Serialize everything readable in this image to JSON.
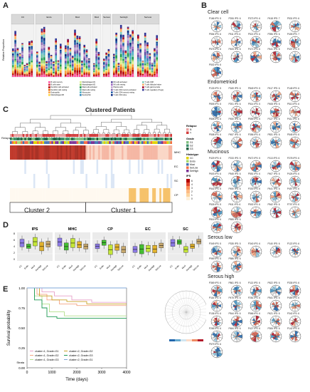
{
  "panels": {
    "A": {
      "label": "A",
      "facets": [
        "CC",
        "Endo",
        "Muci",
        "Muci",
        "Serous",
        "SerHigh",
        "SerLow"
      ],
      "ylabel": "Relative Proportion",
      "legend": [
        "B cells memory",
        "B cells naive",
        "Dendritic cells activated",
        "Dendritic cells resting",
        "Eosinophils",
        "Macrophages M0",
        "Macrophages M1",
        "Macrophages M2",
        "Mast cells activated",
        "Mast cells resting",
        "Monocytes",
        "Neutrophils",
        "NK cells activated",
        "NK cells resting",
        "Plasma cells",
        "T cells CD4 memory activated",
        "T cells CD4 memory resting",
        "T cells CD4 naive",
        "T cells CD8",
        "T cells follicular helper",
        "T cells gamma delta",
        "T cells regulatory (Tregs)"
      ]
    },
    "B": {
      "label": "B"
    },
    "C": {
      "label": "C",
      "title": "Clustered Patients",
      "rows": [
        "MHC",
        "EC",
        "SC",
        "CP"
      ],
      "clusters": [
        "Cluster 2",
        "Cluster 1"
      ],
      "legend_relapse_title": "Relapse",
      "relapse_items": [
        "N",
        "Y"
      ],
      "legend_grade_title": "Grade",
      "grade_items": [
        "G1",
        "G2",
        "G3"
      ],
      "legend_histotype_title": "Histotype",
      "histotype_items": [
        "CC",
        "Endo",
        "Muci",
        "SerLow",
        "SerHigh"
      ],
      "legend_ips_title": "IPS",
      "ips_ticks": [
        "6",
        "4",
        "3",
        "2",
        "1",
        "0"
      ],
      "row_labels_left": [
        "Relapse",
        "Grade",
        "Histotype"
      ]
    },
    "D": {
      "label": "D",
      "titles": [
        "IPS",
        "MHC",
        "CP",
        "EC",
        "SC"
      ],
      "xcats": [
        "CC",
        "Endo",
        "Muci",
        "SerHigh",
        "SerLow"
      ],
      "ipsTicks": [
        "8",
        "6",
        "4",
        "2",
        "0"
      ]
    },
    "E": {
      "label": "E",
      "ylabel": "Survival probability",
      "xlabel": "Time (days)",
      "xticks": [
        "0",
        "1000",
        "2000",
        "3000",
        "4000"
      ],
      "yticks": [
        "1.00",
        "0.75",
        "0.50",
        "0.25",
        "0.00"
      ],
      "strata_title": "Strata",
      "strata": [
        "cluster=1, Grade=G1",
        "cluster=1, Grade=G2",
        "cluster=1, Grade=G3",
        "cluster=2, Grade=G2",
        "cluster=2, Grade=G3",
        "cluster=2, Grade=G1"
      ]
    }
  },
  "radar_groups": [
    {
      "title": "Clear cell",
      "items": [
        "P166 IPS: 5",
        "P206 IPS: 6",
        "P373 IPS: 6",
        "P418 IPS: 7",
        "P531 IPS: 6",
        "P554 IPS: 6",
        "P511 IPS: 6",
        "P521 IPS: 6",
        "P396 IPS: 6",
        "P405 IPS: 7",
        "P575 IPS: 6",
        "P405 IPS: 6",
        "P471 IPS: 6",
        "P441 IPS: 6",
        "P437 IPS: 5",
        "P502 IPS: 6"
      ]
    },
    {
      "title": "Endometrioid",
      "items": [
        "P133 IPS: 5",
        "P169 IPS: 6",
        "P849 IPS: 5",
        "P417 IPS: 6",
        "P145 IPS: 6",
        "P805 IPS: 5",
        "P201 IPS: 6",
        "P514 IPS: 5",
        "P408 IPS: 6",
        "P513 IPS: 6",
        "P808 IPS: 6",
        "P450 IPS: 6",
        "P559 IPS: 5",
        "P127 IPS: 6",
        "P411 IPS: 6",
        "P508 IPS: 6",
        "P457 IPS: 6",
        "P356 IPS: 6",
        "P831 IPS: 6",
        "P545 IPS: 6"
      ]
    },
    {
      "title": "Mucinous",
      "items": [
        "P429 IPS: 6",
        "P233 IPS: 5",
        "P672 IPS: 5",
        "P113 IPS: 6",
        "P278 IPS: 6",
        "P603 IPS: 6",
        "P545 IPS: 6",
        "P551 IPS: 6",
        "P407 IPS: 6",
        "P426 IPS: 6",
        "P542 IPS: 5",
        "P450 IPS: 6",
        "P330 IPS: 6",
        "P441 IPS: 6",
        "P457 IPS: 6",
        "P526 IPS: 5",
        "P611 IPS: 6",
        "P502 IPS: 6",
        "P542 IPS: 6",
        "P707 IPS: 6",
        "P816 IPS: 6",
        "P555 IPS: 6"
      ]
    },
    {
      "title": "Serous low",
      "items": [
        "P349 IPS: 5",
        "P335 IPS: 5",
        "P340 IPS: 6",
        "P140 IPS: 6",
        "P122 IPS: 6",
        "P969 IPS: 5",
        "P586 IPS: 6"
      ]
    },
    {
      "title": "Serous high",
      "items": [
        "P369 IPS: 6",
        "P861 IPS: 6",
        "P113 IPS: 6",
        "P622 IPS: 6",
        "P335 IPS: 6",
        "P116 IPS: 6",
        "P475 IPS: 6",
        "P281 IPS: 6",
        "P541 IPS: 6",
        "P489 IPS: 6",
        "P136 IPS: 6",
        "P544 IPS: 6",
        "P566 IPS: 6",
        "P421 IPS: 6",
        "P342 IPS: 6",
        "P265 IPS: 6",
        "P484 IPS: 6",
        "P427 IPS: 6",
        "P306 IPS: 6",
        "P142 IPS: 6",
        "P579 IPS: 6"
      ]
    }
  ]
}
